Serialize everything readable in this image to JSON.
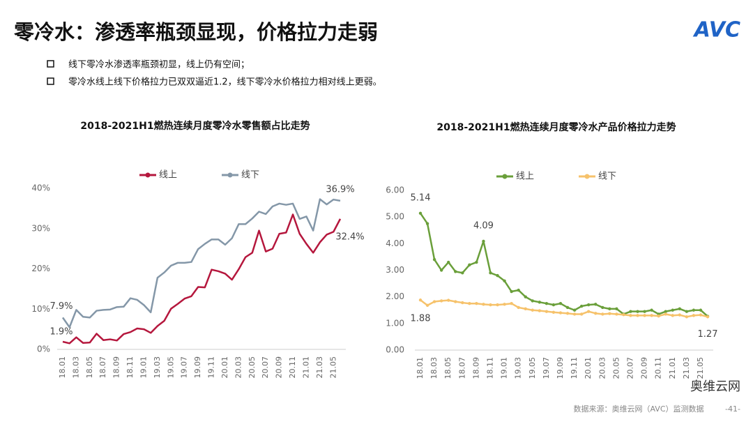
{
  "header": {
    "title": "零冷水：渗透率瓶颈显现，价格拉力走弱",
    "logo": "AVC"
  },
  "bullets": [
    "线下零冷水渗透率瓶颈初显，线上仍有空间；",
    "零冷水线上线下价格拉力已双双逼近1.2，线下零冷水价格拉力相对线上更弱。"
  ],
  "chart_data": [
    {
      "type": "line",
      "title": "2018-2021H1燃热连续月度零冷水零售额占比走势",
      "categories": [
        "18.01",
        null,
        "18.03",
        null,
        "18.05",
        null,
        "18.07",
        null,
        "18.09",
        null,
        "18.11",
        null,
        "19.01",
        null,
        "19.03",
        null,
        "19.05",
        null,
        "19.07",
        null,
        "19.09",
        null,
        "19.11",
        null,
        "20.01",
        null,
        "20.03",
        null,
        "20.05",
        null,
        "20.07",
        null,
        "20.09",
        null,
        "20.11",
        null,
        "21.01",
        null,
        "21.03",
        null,
        "21.05",
        null
      ],
      "ylim": [
        0,
        40
      ],
      "yticks": [
        {
          "value": 0,
          "label": "0%"
        },
        {
          "value": 10,
          "label": "10%"
        },
        {
          "value": 20,
          "label": "20%"
        },
        {
          "value": 30,
          "label": "30%"
        },
        {
          "value": 40,
          "label": "40%"
        }
      ],
      "series": [
        {
          "name": "线上",
          "color": "#b5173d",
          "values": [
            1.9,
            1.5,
            3.0,
            1.6,
            1.7,
            3.9,
            2.3,
            2.5,
            2.2,
            3.8,
            4.3,
            5.2,
            5.0,
            4.1,
            5.8,
            7.1,
            10.1,
            11.3,
            12.6,
            13.2,
            15.5,
            15.4,
            19.8,
            19.4,
            18.8,
            17.3,
            19.9,
            22.9,
            24.0,
            29.5,
            24.3,
            25.0,
            28.7,
            29.0,
            33.5,
            28.7,
            26.2,
            24.0,
            26.6,
            28.5,
            29.2,
            32.4
          ],
          "value_labels": [
            "1.9%",
            null,
            null,
            null,
            null,
            null,
            null,
            null,
            null,
            null,
            null,
            null,
            null,
            null,
            null,
            null,
            null,
            null,
            null,
            null,
            null,
            null,
            null,
            null,
            null,
            null,
            null,
            null,
            null,
            null,
            null,
            null,
            null,
            null,
            null,
            null,
            null,
            null,
            null,
            null,
            null,
            "32.4%"
          ]
        },
        {
          "name": "线下",
          "color": "#8497a8",
          "values": [
            7.9,
            5.5,
            9.8,
            8.1,
            7.9,
            9.6,
            9.8,
            9.9,
            10.5,
            10.6,
            12.7,
            12.3,
            11.0,
            9.2,
            17.8,
            19.1,
            20.8,
            21.5,
            21.5,
            21.7,
            24.9,
            26.2,
            27.3,
            27.3,
            26.0,
            27.6,
            31.1,
            31.1,
            32.5,
            34.2,
            33.6,
            35.5,
            36.2,
            35.9,
            36.2,
            32.4,
            33.0,
            29.5,
            37.3,
            36.0,
            37.2,
            36.9
          ],
          "value_labels": [
            "7.9%",
            null,
            null,
            null,
            null,
            null,
            null,
            null,
            null,
            null,
            null,
            null,
            null,
            null,
            null,
            null,
            null,
            null,
            null,
            null,
            null,
            null,
            null,
            null,
            null,
            null,
            null,
            null,
            null,
            null,
            null,
            null,
            null,
            null,
            null,
            null,
            null,
            null,
            null,
            null,
            null,
            "36.9%"
          ]
        }
      ]
    },
    {
      "type": "line",
      "title": "2018-2021H1燃热连续月度零冷水产品价格拉力走势",
      "categories": [
        "18.01",
        null,
        "18.03",
        null,
        "18.05",
        null,
        "18.07",
        null,
        "18.09",
        null,
        "18.11",
        null,
        "19.01",
        null,
        "19.03",
        null,
        "19.05",
        null,
        "19.07",
        null,
        "19.09",
        null,
        "19.11",
        null,
        "20.01",
        null,
        "20.03",
        null,
        "20.05",
        null,
        "20.07",
        null,
        "20.09",
        null,
        "20.11",
        null,
        "21.01",
        null,
        "21.03",
        null,
        "21.05",
        null
      ],
      "ylim": [
        0,
        6
      ],
      "yticks": [
        {
          "value": 0,
          "label": "0.00"
        },
        {
          "value": 1,
          "label": "1.00"
        },
        {
          "value": 2,
          "label": "2.00"
        },
        {
          "value": 3,
          "label": "3.00"
        },
        {
          "value": 4,
          "label": "4.00"
        },
        {
          "value": 5,
          "label": "5.00"
        },
        {
          "value": 6,
          "label": "6.00"
        }
      ],
      "markers": true,
      "series": [
        {
          "name": "线上",
          "color": "#6a9f3a",
          "values": [
            5.14,
            4.75,
            3.4,
            3.0,
            3.3,
            2.95,
            2.9,
            3.2,
            3.3,
            4.09,
            2.9,
            2.8,
            2.6,
            2.2,
            2.25,
            2.0,
            1.85,
            1.8,
            1.75,
            1.7,
            1.75,
            1.6,
            1.5,
            1.65,
            1.7,
            1.72,
            1.6,
            1.55,
            1.55,
            1.35,
            1.45,
            1.45,
            1.45,
            1.5,
            1.35,
            1.45,
            1.5,
            1.55,
            1.45,
            1.5,
            1.5,
            1.27
          ],
          "value_labels": [
            "5.14",
            null,
            null,
            null,
            null,
            null,
            null,
            null,
            null,
            "4.09",
            null,
            null,
            null,
            null,
            null,
            null,
            null,
            null,
            null,
            null,
            null,
            null,
            null,
            null,
            null,
            null,
            null,
            null,
            null,
            null,
            null,
            null,
            null,
            null,
            null,
            null,
            null,
            null,
            null,
            null,
            null,
            "1.27"
          ]
        },
        {
          "name": "线下",
          "color": "#f6c26b",
          "values": [
            1.88,
            1.68,
            1.82,
            1.85,
            1.87,
            1.82,
            1.78,
            1.75,
            1.75,
            1.72,
            1.7,
            1.7,
            1.72,
            1.75,
            1.6,
            1.55,
            1.5,
            1.48,
            1.45,
            1.42,
            1.4,
            1.38,
            1.35,
            1.35,
            1.45,
            1.38,
            1.35,
            1.37,
            1.35,
            1.33,
            1.3,
            1.3,
            1.3,
            1.3,
            1.28,
            1.35,
            1.3,
            1.32,
            1.25,
            1.3,
            1.32,
            1.25
          ],
          "value_labels": [
            "1.88",
            null,
            null,
            null,
            null,
            null,
            null,
            null,
            null,
            null,
            null,
            null,
            null,
            null,
            null,
            null,
            null,
            null,
            null,
            null,
            null,
            null,
            null,
            null,
            null,
            null,
            null,
            null,
            null,
            null,
            null,
            null,
            null,
            null,
            null,
            null,
            null,
            null,
            null,
            null,
            null,
            null
          ]
        }
      ]
    }
  ],
  "footer": {
    "wechat": "奥维云网",
    "source": "数据来源：奥维云网（AVC）监测数据",
    "page": "-41-"
  }
}
